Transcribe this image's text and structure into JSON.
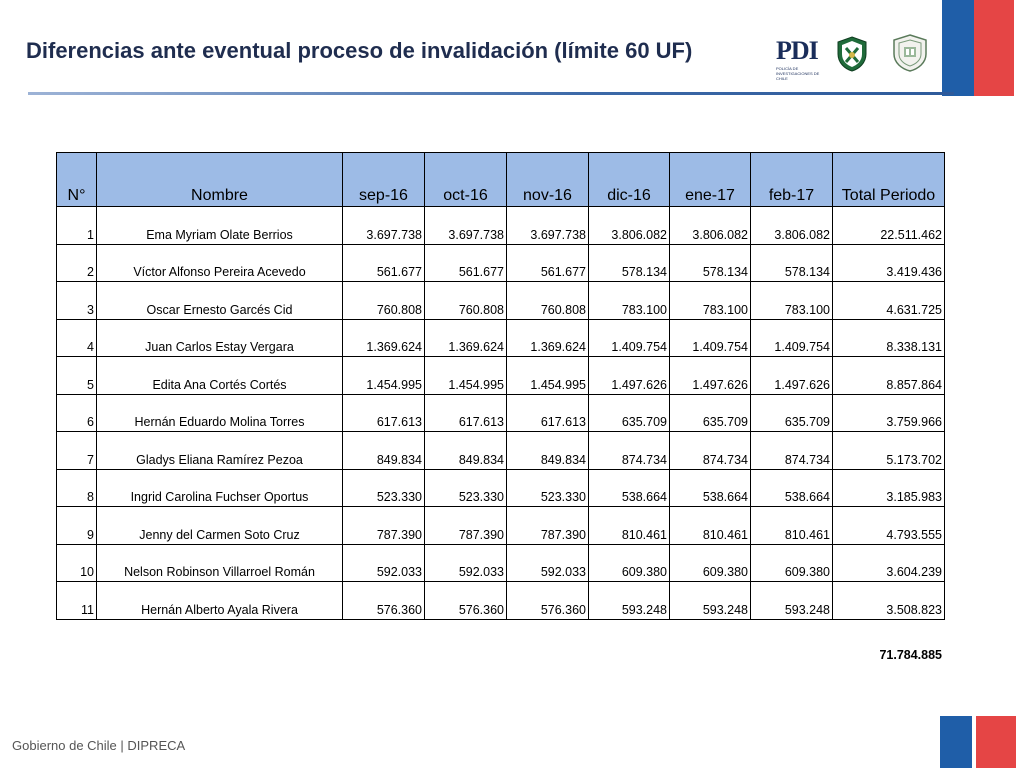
{
  "slide": {
    "title": "Diferencias ante eventual proceso de invalidación (límite 60 UF)",
    "footer": "Gobierno de Chile | DIPRECA"
  },
  "logos": {
    "pdi_text": "PDI",
    "pdi_sub": "POLICÍA DE INVESTIGACIONES DE CHILE"
  },
  "colors": {
    "header_fill": "#9dbbe6",
    "title_color": "#1f2d4f",
    "flag_blue": "#1f5ea8",
    "flag_red": "#e54545"
  },
  "table": {
    "columns": [
      "N°",
      "Nombre",
      "sep-16",
      "oct-16",
      "nov-16",
      "dic-16",
      "ene-17",
      "feb-17",
      "Total Periodo"
    ],
    "rows": [
      [
        "1",
        "Ema Myriam Olate Berrios",
        "3.697.738",
        "3.697.738",
        "3.697.738",
        "3.806.082",
        "3.806.082",
        "3.806.082",
        "22.511.462"
      ],
      [
        "2",
        "Víctor Alfonso Pereira Acevedo",
        "561.677",
        "561.677",
        "561.677",
        "578.134",
        "578.134",
        "578.134",
        "3.419.436"
      ],
      [
        "3",
        "Oscar Ernesto Garcés Cid",
        "760.808",
        "760.808",
        "760.808",
        "783.100",
        "783.100",
        "783.100",
        "4.631.725"
      ],
      [
        "4",
        "Juan Carlos Estay Vergara",
        "1.369.624",
        "1.369.624",
        "1.369.624",
        "1.409.754",
        "1.409.754",
        "1.409.754",
        "8.338.131"
      ],
      [
        "5",
        "Edita Ana Cortés Cortés",
        "1.454.995",
        "1.454.995",
        "1.454.995",
        "1.497.626",
        "1.497.626",
        "1.497.626",
        "8.857.864"
      ],
      [
        "6",
        "Hernán Eduardo Molina Torres",
        "617.613",
        "617.613",
        "617.613",
        "635.709",
        "635.709",
        "635.709",
        "3.759.966"
      ],
      [
        "7",
        "Gladys Eliana Ramírez Pezoa",
        "849.834",
        "849.834",
        "849.834",
        "874.734",
        "874.734",
        "874.734",
        "5.173.702"
      ],
      [
        "8",
        "Ingrid Carolina Fuchser Oportus",
        "523.330",
        "523.330",
        "523.330",
        "538.664",
        "538.664",
        "538.664",
        "3.185.983"
      ],
      [
        "9",
        "Jenny del Carmen Soto Cruz",
        "787.390",
        "787.390",
        "787.390",
        "810.461",
        "810.461",
        "810.461",
        "4.793.555"
      ],
      [
        "10",
        "Nelson Robinson Villarroel Román",
        "592.033",
        "592.033",
        "592.033",
        "609.380",
        "609.380",
        "609.380",
        "3.604.239"
      ],
      [
        "11",
        "Hernán Alberto Ayala Rivera",
        "576.360",
        "576.360",
        "576.360",
        "593.248",
        "593.248",
        "593.248",
        "3.508.823"
      ]
    ],
    "grand_total": "71.784.885"
  }
}
